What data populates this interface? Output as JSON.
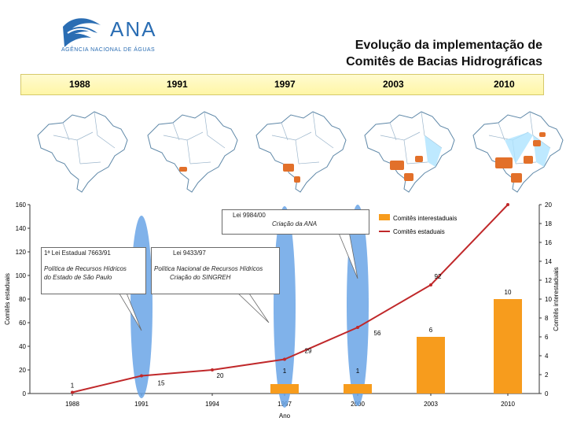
{
  "header": {
    "logo_text": "ANA",
    "logo_sub": "AGÊNCIA NACIONAL DE ÁGUAS",
    "title_line1": "Evolução da implementação de",
    "title_line2": "Comitês de Bacias Hidrográficas"
  },
  "years_band": [
    "1988",
    "1991",
    "1997",
    "2003",
    "2010"
  ],
  "maps": [
    {
      "label": "1988",
      "state_fill": "#7cc8ff",
      "highlight": "none"
    },
    {
      "label": "1991",
      "state_fill": "#7cc8ff",
      "highlight": "small-south"
    },
    {
      "label": "1997",
      "state_fill": "#7cc8ff",
      "highlight": "south"
    },
    {
      "label": "2003",
      "state_fill": "#7cc8ff",
      "highlight": "south-southeast"
    },
    {
      "label": "2010",
      "state_fill": "#7cc8ff",
      "highlight": "widespread"
    }
  ],
  "colors": {
    "line": "#c0282a",
    "bar": "#f79c1d",
    "ellipse": "#6aa4e6",
    "map_blue": "#aee3ff",
    "map_orange": "#e2702a"
  },
  "chart_data": {
    "type": "bar+line",
    "x": [
      "1988",
      "1991",
      "1994",
      "1997",
      "2000",
      "2003",
      "2010"
    ],
    "xlabel": "Ano",
    "ylabel_left": "Comitês estaduais",
    "ylabel_right": "Comitês interestaduais",
    "ylim_left": [
      0,
      160
    ],
    "ylim_right": [
      0,
      20
    ],
    "yticks_left": [
      "0",
      "20",
      "40",
      "60",
      "80",
      "100",
      "120",
      "140",
      "160"
    ],
    "yticks_right": [
      "0",
      "2",
      "4",
      "6",
      "8",
      "10",
      "12",
      "14",
      "16",
      "18",
      "20"
    ],
    "series": [
      {
        "name": "Comitês interestaduais",
        "type": "bar",
        "axis": "right",
        "values": [
          null,
          null,
          null,
          1,
          1,
          6,
          10
        ],
        "labels": [
          "",
          "",
          "",
          "1",
          "1",
          "6",
          "10"
        ]
      },
      {
        "name": "Comitês estaduais",
        "type": "line",
        "axis": "left",
        "values": [
          1,
          15,
          20,
          29,
          56,
          92,
          160
        ],
        "labels": [
          "1",
          "15",
          "20",
          "29",
          "56",
          "92",
          "160"
        ]
      }
    ],
    "legend": [
      {
        "label": "Comitês interestaduais",
        "kind": "bar"
      },
      {
        "label": "Comitês estaduais",
        "kind": "line"
      }
    ],
    "annotations": [
      {
        "text_lines": [
          "1ª Lei Estadual 7663/91",
          "",
          "Política de Recursos Hídricos",
          "do Estado de São Paulo"
        ]
      },
      {
        "text_lines": [
          "Lei 9433/97",
          "",
          "Política Nacional de Recursos Hídricos",
          "Criação do SINGREH"
        ]
      },
      {
        "text_lines": [
          "Lei 9984/00",
          "Criação da ANA"
        ]
      }
    ]
  }
}
